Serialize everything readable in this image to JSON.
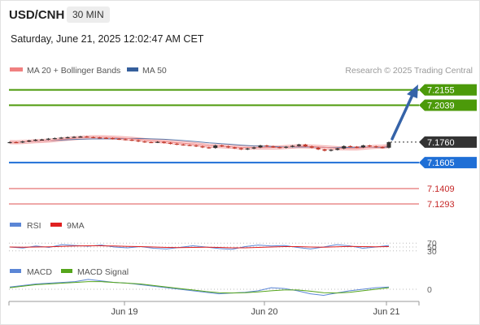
{
  "header": {
    "symbol": "USD/CNH",
    "timeframe": "30 MIN",
    "datetime": "Saturday, June 21, 2025 12:02:47 AM CET"
  },
  "legend": {
    "ma20": "MA 20 + Bollinger Bands",
    "ma50": "MA 50",
    "copyright": "Research © 2025 Trading Central",
    "rsi": "RSI",
    "ma9": "9MA",
    "macd": "MACD",
    "macd_signal": "MACD Signal"
  },
  "colors": {
    "ma20": "#f08080",
    "ma50": "#355f9c",
    "bands_fill": "#fbe0e0",
    "resistance": "#4c9a0a",
    "support": "#1f6fd6",
    "support2": "#e57373",
    "last_price": "#333333",
    "arrow": "#3563a8",
    "rsi": "#5b86d6",
    "rsi_ma": "#e02020",
    "macd": "#5b86d6",
    "macd_signal": "#55a51c",
    "candle_up": "#333333",
    "candle_down": "#c0392b"
  },
  "chart_data": [
    {
      "type": "candlestick",
      "title": "USD/CNH 30 MIN",
      "x_ticks": [
        "Jun 19",
        "Jun 20",
        "Jun 21"
      ],
      "ylim": [
        7.125,
        7.222
      ],
      "ohlc_approx_close": [
        7.176,
        7.1758,
        7.1765,
        7.1772,
        7.1778,
        7.178,
        7.1786,
        7.179,
        7.1794,
        7.1797,
        7.18,
        7.1802,
        7.1798,
        7.1795,
        7.1792,
        7.179,
        7.1785,
        7.1782,
        7.1778,
        7.1773,
        7.1765,
        7.176,
        7.1758,
        7.1762,
        7.1755,
        7.1748,
        7.1742,
        7.1738,
        7.1735,
        7.1728,
        7.172,
        7.1716,
        7.1735,
        7.1728,
        7.172,
        7.1714,
        7.1705,
        7.1712,
        7.172,
        7.1735,
        7.1728,
        7.1722,
        7.1718,
        7.1725,
        7.1732,
        7.1742,
        7.1728,
        7.1718,
        7.1705,
        7.1695,
        7.1702,
        7.1712,
        7.173,
        7.1725,
        7.172,
        7.1735,
        7.1728,
        7.1722,
        7.1718,
        7.176
      ],
      "levels": [
        {
          "value": 7.2155,
          "label": "7.2155",
          "kind": "resistance"
        },
        {
          "value": 7.2039,
          "label": "7.2039",
          "kind": "resistance"
        },
        {
          "value": 7.176,
          "label": "7.1760",
          "kind": "last"
        },
        {
          "value": 7.1605,
          "label": "7.1605",
          "kind": "support"
        },
        {
          "value": 7.1409,
          "label": "7.1409",
          "kind": "support2"
        },
        {
          "value": 7.1293,
          "label": "7.1293",
          "kind": "support2"
        }
      ]
    },
    {
      "type": "line",
      "title": "RSI",
      "levels": [
        70,
        50,
        30
      ],
      "ylim": [
        0,
        100
      ],
      "series": [
        {
          "name": "RSI",
          "values": [
            50,
            45,
            55,
            48,
            62,
            58,
            54,
            60,
            50,
            46,
            52,
            44,
            40,
            48,
            56,
            50,
            42,
            38,
            52,
            60,
            55,
            58,
            48,
            40,
            50,
            62,
            56,
            44,
            50,
            58
          ]
        },
        {
          "name": "9MA",
          "values": [
            50,
            49,
            50,
            51,
            53,
            55,
            56,
            56,
            55,
            53,
            52,
            50,
            48,
            47,
            48,
            49,
            48,
            46,
            46,
            48,
            50,
            52,
            52,
            50,
            49,
            51,
            53,
            52,
            51,
            52
          ]
        }
      ]
    },
    {
      "type": "line",
      "title": "MACD",
      "levels": [
        0
      ],
      "series": [
        {
          "name": "MACD",
          "values": [
            0.3,
            0.5,
            0.7,
            0.8,
            0.9,
            1.0,
            1.3,
            1.1,
            0.9,
            0.8,
            0.6,
            0.4,
            0.2,
            0.0,
            -0.2,
            -0.4,
            -0.6,
            -0.5,
            -0.4,
            -0.2,
            0.2,
            0.1,
            -0.2,
            -0.6,
            -0.8,
            -0.5,
            -0.2,
            0.0,
            0.2,
            0.3
          ]
        },
        {
          "name": "MACD Signal",
          "values": [
            0.2,
            0.4,
            0.6,
            0.7,
            0.8,
            0.9,
            1.0,
            1.0,
            0.9,
            0.8,
            0.7,
            0.5,
            0.3,
            0.1,
            -0.1,
            -0.3,
            -0.45,
            -0.5,
            -0.45,
            -0.35,
            -0.2,
            -0.1,
            -0.1,
            -0.25,
            -0.45,
            -0.5,
            -0.4,
            -0.2,
            0.0,
            0.2
          ]
        }
      ]
    }
  ]
}
